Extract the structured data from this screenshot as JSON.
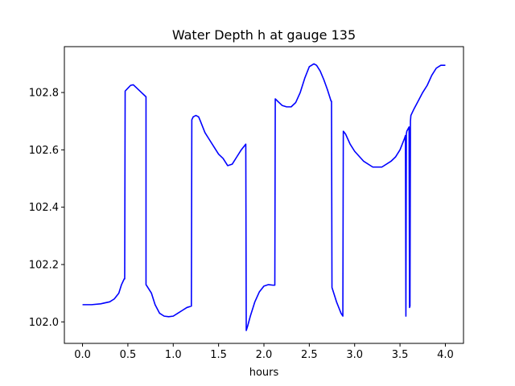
{
  "chart_data": {
    "type": "line",
    "title": "Water Depth h at gauge 135",
    "xlabel": "hours",
    "ylabel": "",
    "xlim": [
      -0.2,
      4.2
    ],
    "ylim": [
      101.925,
      102.96
    ],
    "xticks": [
      0.0,
      0.5,
      1.0,
      1.5,
      2.0,
      2.5,
      3.0,
      3.5,
      4.0
    ],
    "xtick_labels": [
      "0.0",
      "0.5",
      "1.0",
      "1.5",
      "2.0",
      "2.5",
      "3.0",
      "3.5",
      "4.0"
    ],
    "yticks": [
      102.0,
      102.2,
      102.4,
      102.6,
      102.8
    ],
    "ytick_labels": [
      "102.0",
      "102.2",
      "102.4",
      "102.6",
      "102.8"
    ],
    "grid": false,
    "legend": "none",
    "series": [
      {
        "color": "#0000ff",
        "x": [
          0.0,
          0.1,
          0.2,
          0.3,
          0.35,
          0.4,
          0.43,
          0.46,
          0.465,
          0.47,
          0.5,
          0.53,
          0.56,
          0.6,
          0.65,
          0.7,
          0.7,
          0.72,
          0.76,
          0.8,
          0.85,
          0.9,
          0.95,
          1.0,
          1.05,
          1.1,
          1.15,
          1.2,
          1.205,
          1.22,
          1.25,
          1.28,
          1.3,
          1.35,
          1.4,
          1.45,
          1.5,
          1.55,
          1.6,
          1.65,
          1.7,
          1.75,
          1.8,
          1.805,
          1.82,
          1.85,
          1.9,
          1.95,
          2.0,
          2.05,
          2.1,
          2.12,
          2.125,
          2.15,
          2.2,
          2.25,
          2.3,
          2.35,
          2.4,
          2.45,
          2.5,
          2.55,
          2.58,
          2.62,
          2.66,
          2.7,
          2.74,
          2.745,
          2.75,
          2.8,
          2.85,
          2.87,
          2.875,
          2.9,
          2.95,
          3.0,
          3.1,
          3.2,
          3.3,
          3.4,
          3.45,
          3.5,
          3.55,
          3.56,
          3.565,
          3.57,
          3.575,
          3.6,
          3.605,
          3.61,
          3.615,
          3.62,
          3.65,
          3.7,
          3.75,
          3.8,
          3.85,
          3.9,
          3.95,
          3.98,
          4.0
        ],
        "y": [
          102.06,
          102.06,
          102.063,
          102.07,
          102.08,
          102.1,
          102.13,
          102.15,
          102.15,
          102.805,
          102.815,
          102.825,
          102.827,
          102.815,
          102.8,
          102.785,
          102.13,
          102.12,
          102.1,
          102.06,
          102.03,
          102.02,
          102.018,
          102.02,
          102.03,
          102.04,
          102.05,
          102.055,
          102.705,
          102.715,
          102.72,
          102.715,
          102.7,
          102.66,
          102.635,
          102.61,
          102.585,
          102.57,
          102.545,
          102.55,
          102.575,
          102.6,
          102.62,
          101.97,
          101.985,
          102.02,
          102.07,
          102.105,
          102.125,
          102.13,
          102.128,
          102.128,
          102.778,
          102.77,
          102.755,
          102.75,
          102.75,
          102.765,
          102.8,
          102.85,
          102.89,
          102.9,
          102.895,
          102.875,
          102.845,
          102.81,
          102.77,
          102.77,
          102.12,
          102.07,
          102.03,
          102.02,
          102.665,
          102.655,
          102.62,
          102.595,
          102.56,
          102.54,
          102.54,
          102.56,
          102.575,
          102.6,
          102.64,
          102.65,
          102.02,
          102.655,
          102.665,
          102.68,
          102.05,
          102.055,
          102.7,
          102.72,
          102.74,
          102.77,
          102.8,
          102.825,
          102.86,
          102.885,
          102.895,
          102.895,
          102.895
        ]
      }
    ]
  }
}
